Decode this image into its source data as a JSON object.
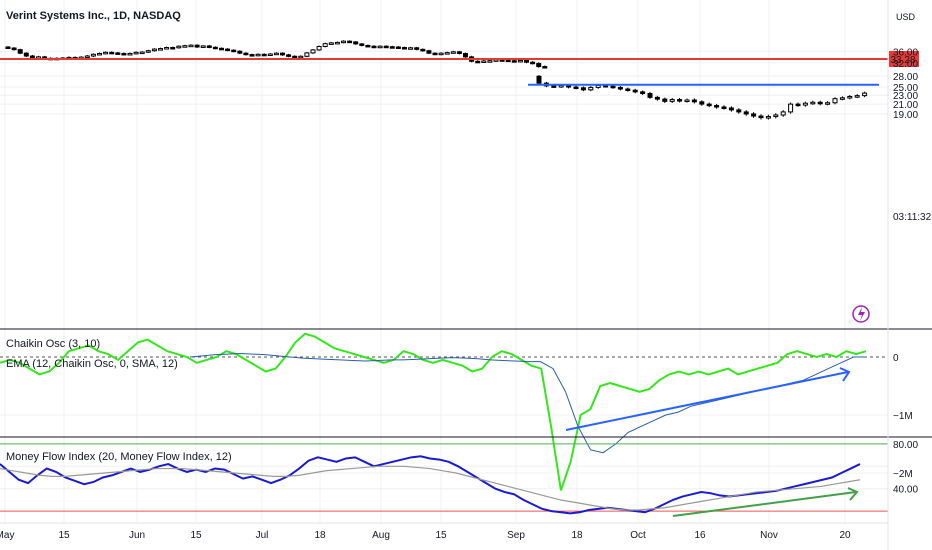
{
  "header": {
    "symbol_title": "Verint Systems Inc., 1D, NASDAQ",
    "currency": "USD",
    "countdown": "03:11:32"
  },
  "panes": {
    "chaikin_title": "Chaikin Osc (3, 10)",
    "chaikin_ema_title": "EMA (12, Chaikin Osc, 0, SMA, 12)",
    "mfi_title": "Money Flow Index (20, Money Flow Index, 12)"
  },
  "colors": {
    "candle": "#000000",
    "resistance": "#e53935",
    "support": "#2962ff",
    "chaikin": "#35e61c",
    "chaikin_ema": "#2a5ea8",
    "mfi": "#1a1acf",
    "mfi_ma": "#999999",
    "mfi_upper": "#4caf50",
    "mfi_lower": "#ef5350",
    "trend_blue": "#2962ff",
    "trend_green": "#43a047",
    "flash": "#9c27b0"
  },
  "chart_data": [
    {
      "type": "candlestick",
      "title": "Verint Systems Inc., 1D, NASDAQ",
      "y_unit": "USD",
      "y_ticks": [
        19.0,
        21.0,
        23.0,
        25.0,
        28.0,
        32.0,
        36.0
      ],
      "x_ticks": [
        "May",
        "15",
        "Jun",
        "15",
        "Jul",
        "18",
        "Aug",
        "15",
        "Sep",
        "18",
        "Oct",
        "16",
        "Nov",
        "20"
      ],
      "price_level": {
        "label": "33.28",
        "value": 33.28
      },
      "horizontal_line": {
        "value": 25.6
      },
      "closes": [
        37.2,
        36.6,
        35.3,
        34.3,
        33.9,
        34.0,
        33.5,
        33.4,
        33.5,
        33.6,
        33.8,
        33.8,
        33.9,
        34.3,
        34.9,
        35.2,
        35.6,
        35.4,
        35.2,
        35.0,
        35.2,
        35.6,
        35.7,
        36.2,
        36.8,
        37.0,
        37.4,
        37.3,
        37.9,
        38.1,
        38.3,
        37.6,
        38.0,
        37.5,
        37.1,
        36.8,
        36.4,
        36.0,
        35.3,
        34.8,
        34.6,
        34.9,
        34.8,
        35.0,
        35.3,
        34.7,
        34.2,
        34.0,
        34.2,
        35.4,
        36.5,
        37.8,
        38.9,
        39.2,
        39.4,
        39.9,
        39.6,
        38.8,
        38.2,
        37.9,
        37.5,
        37.9,
        37.7,
        37.6,
        37.4,
        37.2,
        37.3,
        36.7,
        36.2,
        35.3,
        34.9,
        35.3,
        35.5,
        35.8,
        35.2,
        34.0,
        32.5,
        32.3,
        32.6,
        32.7,
        33.0,
        32.9,
        32.7,
        32.5,
        32.8,
        32.2,
        31.8,
        30.8,
        30.7
      ],
      "closes_post_gap": [
        26.0,
        25.3,
        25.1,
        25.4,
        25.0,
        24.8,
        24.3,
        24.9,
        25.4,
        25.2,
        24.9,
        24.5,
        24.2,
        23.8,
        23.4,
        22.5,
        22.1,
        21.6,
        22.0,
        21.7,
        21.9,
        21.5,
        21.0,
        20.7,
        20.4,
        20.2,
        19.8,
        19.4,
        19.0,
        18.6,
        18.3,
        18.5,
        18.8,
        19.4,
        21.0,
        20.8,
        21.2,
        21.4,
        21.1,
        21.3,
        22.2,
        22.4,
        22.7,
        22.9,
        23.5
      ],
      "gap_open": 27.9
    },
    {
      "type": "line",
      "title": "Chaikin Osc (3, 10)",
      "y_ticks": [
        "0",
        "−1M",
        "−2M"
      ],
      "series": [
        {
          "name": "Chaikin Osc (3, 10)",
          "values": [
            -0.1,
            -0.05,
            -0.1,
            -0.2,
            -0.3,
            -0.25,
            -0.1,
            0.1,
            0.15,
            0.2,
            0.1,
            0.05,
            -0.05,
            0.1,
            0.25,
            0.3,
            0.2,
            0.1,
            0.05,
            0.0,
            -0.1,
            -0.05,
            0.0,
            0.1,
            0.05,
            -0.05,
            -0.15,
            -0.25,
            -0.2,
            0.0,
            0.25,
            0.4,
            0.35,
            0.25,
            0.15,
            0.1,
            0.05,
            0.0,
            -0.05,
            -0.1,
            -0.05,
            0.1,
            0.05,
            -0.05,
            -0.1,
            -0.05,
            -0.1,
            -0.15,
            -0.25,
            -0.2,
            0.0,
            0.1,
            0.05,
            -0.05,
            -0.15,
            -0.2,
            -1.2,
            -2.3,
            -1.8,
            -1.0,
            -0.9,
            -0.5,
            -0.45,
            -0.5,
            -0.55,
            -0.6,
            -0.55,
            -0.4,
            -0.3,
            -0.25,
            -0.3,
            -0.25,
            -0.3,
            -0.25,
            -0.2,
            -0.3,
            -0.25,
            -0.2,
            -0.15,
            -0.1,
            0.05,
            0.1,
            0.05,
            0.0,
            0.05,
            0.0,
            0.1,
            0.05,
            0.1
          ]
        },
        {
          "name": "EMA (12, Chaikin Osc, 0, SMA, 12)",
          "values": [
            0.0,
            0.02,
            0.04,
            0.05,
            0.06,
            0.05,
            0.04,
            0.02,
            0.0,
            -0.02,
            -0.03,
            -0.04,
            -0.05,
            -0.06,
            -0.07,
            -0.06,
            -0.05,
            -0.05,
            -0.04,
            -0.03,
            -0.02,
            -0.01,
            -0.02,
            -0.03,
            -0.05,
            -0.06,
            -0.07,
            -0.08,
            -0.08,
            -0.2,
            -0.6,
            -1.2,
            -1.6,
            -1.65,
            -1.5,
            -1.3,
            -1.2,
            -1.1,
            -1.0,
            -0.95,
            -0.85,
            -0.8,
            -0.75,
            -0.7,
            -0.65,
            -0.6,
            -0.55,
            -0.5,
            -0.45,
            -0.4,
            -0.3,
            -0.2,
            -0.1,
            0.0,
            0.0
          ]
        }
      ],
      "annotation": "rising trend arrow"
    },
    {
      "type": "line",
      "title": "Money Flow Index (20, Money Flow Index, 12)",
      "y_ticks": [
        80.0,
        40.0
      ],
      "bands": {
        "upper": 80,
        "lower": 20
      },
      "series": [
        {
          "name": "Money Flow Index (20, Money Flow Index, 12)",
          "values": [
            62,
            55,
            48,
            45,
            52,
            58,
            55,
            50,
            47,
            44,
            46,
            50,
            52,
            55,
            58,
            55,
            57,
            60,
            62,
            58,
            55,
            57,
            55,
            58,
            57,
            53,
            49,
            51,
            48,
            45,
            48,
            52,
            58,
            65,
            68,
            66,
            64,
            67,
            68,
            64,
            60,
            62,
            64,
            66,
            68,
            69,
            67,
            66,
            64,
            60,
            55,
            50,
            45,
            40,
            37,
            35,
            30,
            26,
            22,
            20,
            19,
            18,
            19,
            21,
            22,
            23,
            22,
            21,
            20,
            19,
            22,
            26,
            30,
            33,
            35,
            37,
            36,
            34,
            33,
            34,
            35,
            36,
            37,
            38,
            40,
            42,
            44,
            46,
            48,
            50,
            54,
            58,
            62
          ]
        },
        {
          "name": "MA",
          "values": [
            58,
            56,
            54,
            52,
            51,
            51,
            52,
            53,
            54,
            55,
            56,
            57,
            58,
            58,
            58,
            57,
            56,
            55,
            54,
            53,
            52,
            51,
            51,
            52,
            54,
            56,
            57,
            58,
            59,
            60,
            60,
            60,
            59,
            58,
            56,
            54,
            51,
            48,
            45,
            42,
            39,
            36,
            33,
            30,
            28,
            26,
            24,
            22,
            21,
            21,
            22,
            23,
            25,
            27,
            29,
            31,
            33,
            35,
            37,
            38,
            39,
            40,
            41,
            42,
            44,
            46,
            48
          ]
        }
      ],
      "annotation": "rising trend arrow"
    }
  ]
}
